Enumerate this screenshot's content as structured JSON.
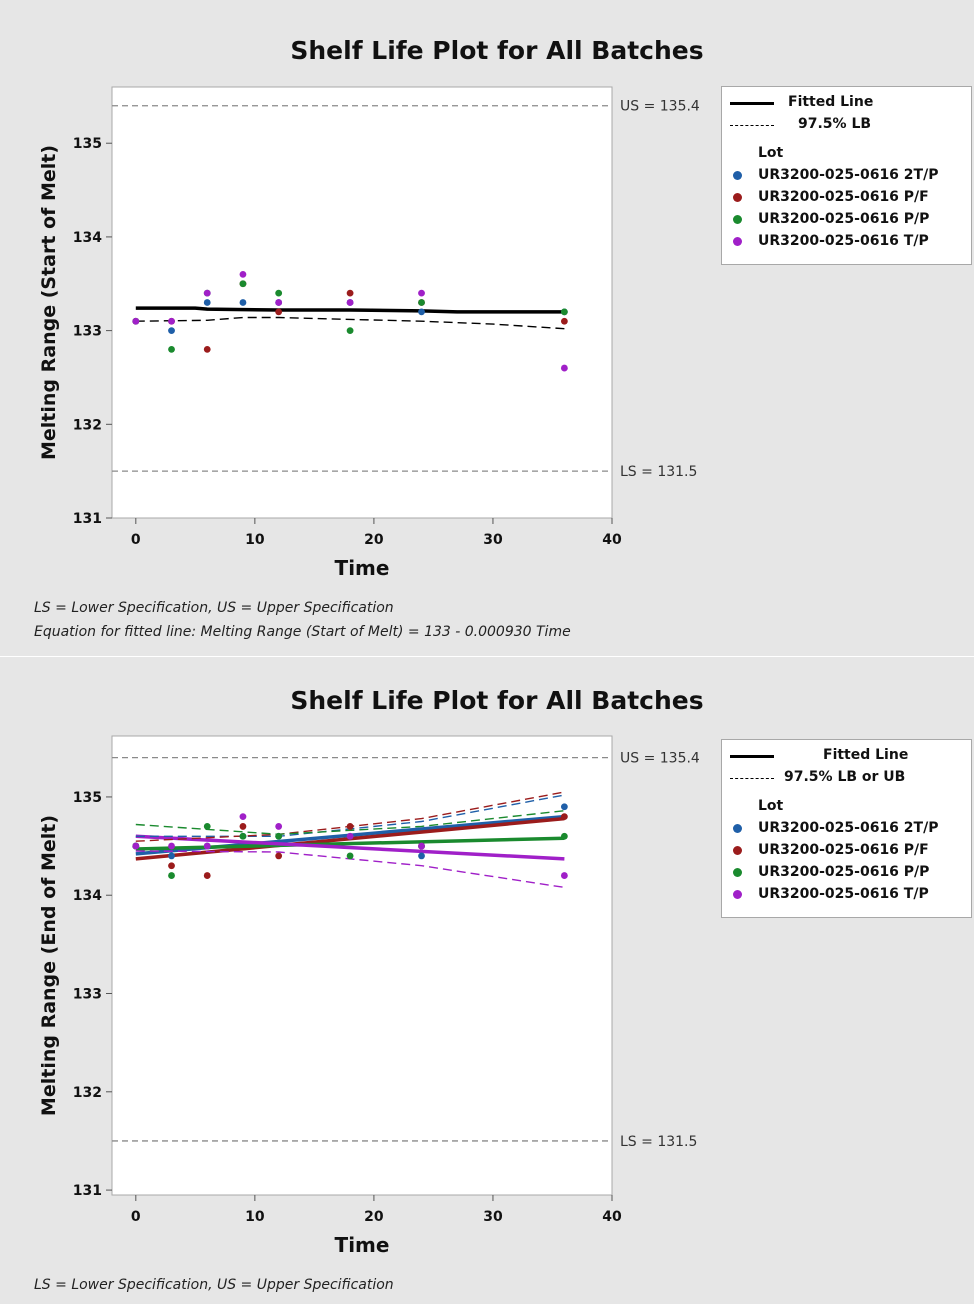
{
  "chart_data": [
    {
      "type": "scatter",
      "title": "Shelf Life Plot for All Batches",
      "xlabel": "Time",
      "ylabel": "Melting Range (Start of Melt)",
      "xlim": [
        -2,
        40
      ],
      "ylim": [
        131,
        135.6
      ],
      "xticks": [
        "0",
        "10",
        "20",
        "30",
        "40"
      ],
      "yticks": [
        "131",
        "132",
        "133",
        "134",
        "135"
      ],
      "grid": false,
      "legend_position": "right",
      "reference_lines": [
        {
          "label": "US = 135.4",
          "value": 135.4
        },
        {
          "label": "LS = 131.5",
          "value": 131.5
        }
      ],
      "legend": {
        "fitted_label": "Fitted Line",
        "bound_label": "97.5% LB",
        "lot_title": "Lot"
      },
      "fitted_lines": [
        {
          "style": "solid",
          "color": "#000000",
          "x": [
            0,
            5,
            6,
            12,
            18,
            24,
            27,
            36
          ],
          "y": [
            133.24,
            133.24,
            133.23,
            133.22,
            133.22,
            133.21,
            133.2,
            133.2
          ]
        },
        {
          "style": "dashed",
          "color": "#000000",
          "x": [
            0,
            6,
            9,
            12,
            18,
            24,
            30,
            36
          ],
          "y": [
            133.1,
            133.11,
            133.14,
            133.14,
            133.12,
            133.1,
            133.07,
            133.02
          ]
        }
      ],
      "series": [
        {
          "name": "UR3200-025-0616 2T/P",
          "color": "#1f5fa8",
          "x": [
            0,
            3,
            6,
            9,
            12,
            18,
            24,
            36
          ],
          "y": [
            133.1,
            133.0,
            133.3,
            133.3,
            133.3,
            133.3,
            133.2,
            133.2
          ]
        },
        {
          "name": "UR3200-025-0616 P/F",
          "color": "#9b1c1c",
          "x": [
            0,
            3,
            6,
            9,
            12,
            18,
            24,
            36
          ],
          "y": [
            133.1,
            133.1,
            132.8,
            133.5,
            133.2,
            133.4,
            133.3,
            133.1
          ]
        },
        {
          "name": "UR3200-025-0616 P/P",
          "color": "#1a8a2e",
          "x": [
            0,
            3,
            6,
            9,
            12,
            18,
            24,
            36
          ],
          "y": [
            133.1,
            132.8,
            133.4,
            133.5,
            133.4,
            133.0,
            133.3,
            133.2
          ]
        },
        {
          "name": "UR3200-025-0616 T/P",
          "color": "#a020c8",
          "x": [
            0,
            3,
            6,
            9,
            12,
            18,
            24,
            36
          ],
          "y": [
            133.1,
            133.1,
            133.4,
            133.6,
            133.3,
            133.3,
            133.4,
            132.6
          ]
        }
      ],
      "footnotes": [
        "LS = Lower Specification, US = Upper Specification",
        "Equation for fitted line: Melting Range (Start of Melt) = 133 - 0.000930 Time"
      ]
    },
    {
      "type": "scatter",
      "title": "Shelf Life Plot for All Batches",
      "xlabel": "Time",
      "ylabel": "Melting Range (End of Melt)",
      "xlim": [
        -2,
        40
      ],
      "ylim": [
        130.95,
        135.62
      ],
      "xticks": [
        "0",
        "10",
        "20",
        "30",
        "40"
      ],
      "yticks": [
        "131",
        "132",
        "133",
        "134",
        "135"
      ],
      "grid": false,
      "legend_position": "right",
      "reference_lines": [
        {
          "label": "US = 135.4",
          "value": 135.4
        },
        {
          "label": "LS = 131.5",
          "value": 131.5
        }
      ],
      "legend": {
        "fitted_label": "Fitted Line",
        "bound_label": "97.5% LB or UB",
        "lot_title": "Lot"
      },
      "fitted_lines": [
        {
          "style": "solid",
          "color": "#1f5fa8",
          "x": [
            0,
            36
          ],
          "y": [
            134.42,
            134.8
          ]
        },
        {
          "style": "solid",
          "color": "#9b1c1c",
          "x": [
            0,
            36
          ],
          "y": [
            134.37,
            134.78
          ]
        },
        {
          "style": "solid",
          "color": "#1a8a2e",
          "x": [
            0,
            36
          ],
          "y": [
            134.47,
            134.58
          ]
        },
        {
          "style": "solid",
          "color": "#a020c8",
          "x": [
            0,
            36
          ],
          "y": [
            134.6,
            134.37
          ]
        },
        {
          "style": "dashed",
          "color": "#1f5fa8",
          "x": [
            0,
            12,
            24,
            36
          ],
          "y": [
            134.6,
            134.6,
            134.75,
            135.02
          ]
        },
        {
          "style": "dashed",
          "color": "#9b1c1c",
          "x": [
            0,
            12,
            24,
            36
          ],
          "y": [
            134.55,
            134.62,
            134.78,
            135.05
          ]
        },
        {
          "style": "dashed",
          "color": "#1a8a2e",
          "x": [
            0,
            12,
            24,
            36
          ],
          "y": [
            134.72,
            134.62,
            134.7,
            134.86
          ]
        },
        {
          "style": "dashed",
          "color": "#a020c8",
          "x": [
            0,
            12,
            24,
            36
          ],
          "y": [
            134.45,
            134.44,
            134.3,
            134.08
          ]
        }
      ],
      "series": [
        {
          "name": "UR3200-025-0616 2T/P",
          "color": "#1f5fa8",
          "x": [
            0,
            3,
            6,
            9,
            12,
            18,
            24,
            36
          ],
          "y": [
            134.5,
            134.4,
            134.5,
            134.6,
            134.6,
            134.6,
            134.4,
            134.9
          ]
        },
        {
          "name": "UR3200-025-0616 P/F",
          "color": "#9b1c1c",
          "x": [
            0,
            3,
            6,
            9,
            12,
            18,
            24,
            36
          ],
          "y": [
            134.5,
            134.3,
            134.2,
            134.7,
            134.4,
            134.7,
            134.5,
            134.8
          ]
        },
        {
          "name": "UR3200-025-0616 P/P",
          "color": "#1a8a2e",
          "x": [
            0,
            3,
            6,
            9,
            12,
            18,
            24,
            36
          ],
          "y": [
            134.5,
            134.2,
            134.7,
            134.6,
            134.6,
            134.4,
            134.5,
            134.6
          ]
        },
        {
          "name": "UR3200-025-0616 T/P",
          "color": "#a020c8",
          "x": [
            0,
            3,
            6,
            9,
            12,
            18,
            24,
            36
          ],
          "y": [
            134.5,
            134.5,
            134.5,
            134.8,
            134.7,
            134.6,
            134.5,
            134.2
          ]
        }
      ],
      "footnotes": [
        "LS = Lower Specification, US = Upper Specification"
      ]
    }
  ]
}
